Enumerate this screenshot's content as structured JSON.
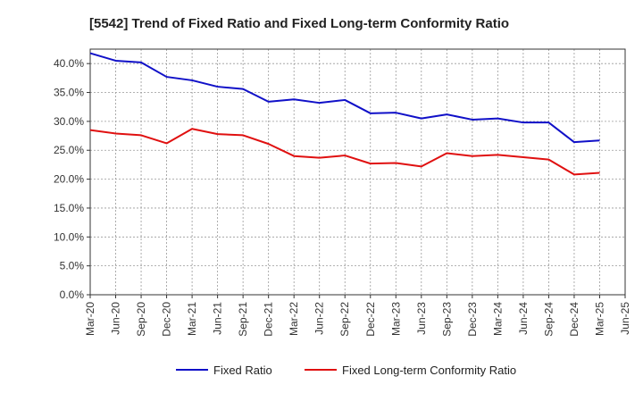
{
  "chart_data": {
    "type": "line",
    "title": "[5542]  Trend of Fixed Ratio and Fixed Long-term Conformity Ratio",
    "xlabel": "",
    "ylabel": "",
    "categories": [
      "Mar-20",
      "Jun-20",
      "Sep-20",
      "Dec-20",
      "Mar-21",
      "Jun-21",
      "Sep-21",
      "Dec-21",
      "Mar-22",
      "Jun-22",
      "Sep-22",
      "Dec-22",
      "Mar-23",
      "Jun-23",
      "Sep-23",
      "Dec-23",
      "Mar-24",
      "Jun-24",
      "Sep-24",
      "Dec-24",
      "Mar-25"
    ],
    "x_tick_labels": [
      "Mar-20",
      "Jun-20",
      "Sep-20",
      "Dec-20",
      "Mar-21",
      "Jun-21",
      "Sep-21",
      "Dec-21",
      "Mar-22",
      "Jun-22",
      "Sep-22",
      "Dec-22",
      "Mar-23",
      "Jun-23",
      "Sep-23",
      "Dec-23",
      "Mar-24",
      "Jun-24",
      "Sep-24",
      "Dec-24",
      "Mar-25",
      "Jun-25"
    ],
    "y_ticks": [
      0,
      5,
      10,
      15,
      20,
      25,
      30,
      35,
      40
    ],
    "y_tick_labels": [
      "0.0%",
      "5.0%",
      "10.0%",
      "15.0%",
      "20.0%",
      "25.0%",
      "30.0%",
      "35.0%",
      "40.0%"
    ],
    "ylim": [
      0,
      42.5
    ],
    "grid": true,
    "legend_position": "bottom",
    "series": [
      {
        "name": "Fixed Ratio",
        "color": "#1010c8",
        "values": [
          41.8,
          40.5,
          40.2,
          37.7,
          37.1,
          36.0,
          35.6,
          33.4,
          33.8,
          33.2,
          33.7,
          31.4,
          31.5,
          30.5,
          31.2,
          30.3,
          30.5,
          29.8,
          29.8,
          26.4,
          26.7
        ]
      },
      {
        "name": "Fixed Long-term Conformity Ratio",
        "color": "#e01010",
        "values": [
          28.5,
          27.9,
          27.6,
          26.2,
          28.7,
          27.8,
          27.6,
          26.1,
          24.0,
          23.7,
          24.1,
          22.7,
          22.8,
          22.2,
          24.5,
          24.0,
          24.2,
          23.8,
          23.4,
          20.8,
          21.1
        ]
      }
    ]
  }
}
